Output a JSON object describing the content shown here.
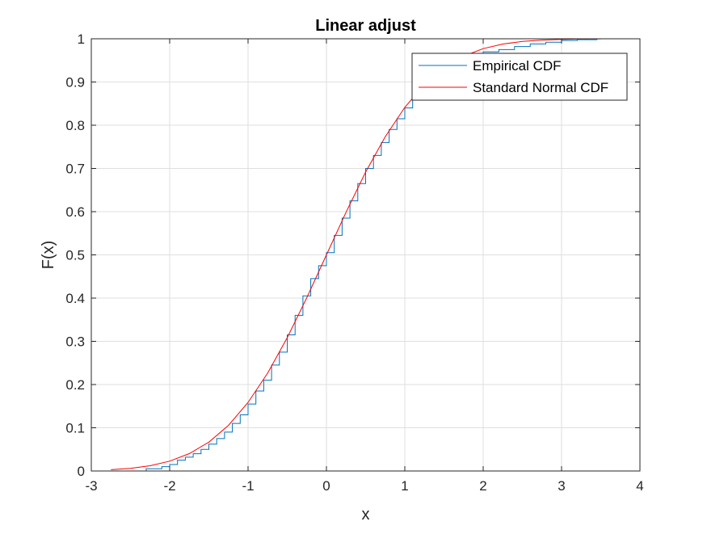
{
  "chart_data": {
    "type": "line",
    "title": "Linear adjust",
    "xlabel": "x",
    "ylabel": "F(x)",
    "xlim": [
      -3,
      4
    ],
    "ylim": [
      0,
      1
    ],
    "grid": true,
    "legend_position": "top-right",
    "xticks": [
      "-3",
      "-2",
      "-1",
      "0",
      "1",
      "2",
      "3",
      "4"
    ],
    "yticks": [
      "0",
      "0.1",
      "0.2",
      "0.3",
      "0.4",
      "0.5",
      "0.6",
      "0.7",
      "0.8",
      "0.9",
      "1"
    ],
    "series": [
      {
        "name": "Empirical CDF",
        "color": "#0072BD",
        "style": "step",
        "x": [
          -2.45,
          -2.3,
          -2.1,
          -2.0,
          -1.9,
          -1.8,
          -1.7,
          -1.6,
          -1.5,
          -1.4,
          -1.3,
          -1.2,
          -1.1,
          -1.0,
          -0.9,
          -0.8,
          -0.7,
          -0.6,
          -0.5,
          -0.4,
          -0.3,
          -0.2,
          -0.1,
          0.0,
          0.1,
          0.2,
          0.3,
          0.4,
          0.5,
          0.6,
          0.7,
          0.8,
          0.9,
          1.0,
          1.1,
          1.2,
          1.4,
          1.6,
          1.8,
          2.0,
          2.2,
          2.4,
          2.6,
          2.8,
          3.0,
          3.2,
          3.45
        ],
        "y": [
          0.0,
          0.005,
          0.01,
          0.015,
          0.025,
          0.032,
          0.04,
          0.05,
          0.062,
          0.075,
          0.09,
          0.11,
          0.13,
          0.155,
          0.185,
          0.21,
          0.245,
          0.275,
          0.315,
          0.36,
          0.405,
          0.445,
          0.475,
          0.505,
          0.545,
          0.585,
          0.625,
          0.665,
          0.7,
          0.73,
          0.76,
          0.79,
          0.815,
          0.84,
          0.86,
          0.88,
          0.91,
          0.935,
          0.955,
          0.97,
          0.975,
          0.982,
          0.988,
          0.992,
          0.996,
          0.998,
          1.0
        ]
      },
      {
        "name": "Standard Normal CDF",
        "color": "#FF0000",
        "style": "smooth",
        "x": [
          -2.75,
          -2.5,
          -2.25,
          -2.0,
          -1.75,
          -1.5,
          -1.25,
          -1.0,
          -0.75,
          -0.5,
          -0.25,
          0.0,
          0.25,
          0.5,
          0.75,
          1.0,
          1.25,
          1.5,
          1.75,
          2.0,
          2.25,
          2.5,
          2.75,
          3.0,
          3.25,
          3.5
        ],
        "y": [
          0.003,
          0.0062,
          0.0122,
          0.0228,
          0.0401,
          0.0668,
          0.1056,
          0.1587,
          0.2266,
          0.3085,
          0.4013,
          0.5,
          0.5987,
          0.6915,
          0.7734,
          0.8413,
          0.8944,
          0.9332,
          0.9599,
          0.9772,
          0.9878,
          0.9938,
          0.997,
          0.9987,
          0.9994,
          0.9998
        ]
      }
    ]
  }
}
